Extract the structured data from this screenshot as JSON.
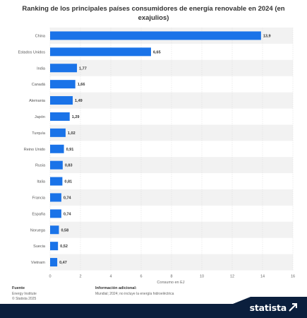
{
  "title": "Ranking de los principales países consumidores de energía renovable en 2024 (en exajulios)",
  "footer": {
    "source_heading": "Fuente",
    "source_line1": "Energy Institute",
    "source_line2": "© Statista 2025",
    "info_heading": "Información adicional:",
    "info_text": "Mundial; 2024; no incluye la energía hidroeléctrica",
    "brand": "statista"
  },
  "colors": {
    "bar": "#1a73e8",
    "band": "#f2f2f2",
    "brand_bg": "#0b1f3d",
    "grid": "#d9d9d9"
  },
  "icons": {
    "brand_logo": "statista-arrow-icon"
  },
  "chart_data": {
    "type": "bar",
    "orientation": "horizontal",
    "categories": [
      "China",
      "Estados Unidos",
      "India",
      "Canadá",
      "Alemania",
      "Japón",
      "Turquía",
      "Reino Unido",
      "Rusia",
      "Italia",
      "Francia",
      "España",
      "Noruega",
      "Suecia",
      "Vietnam"
    ],
    "values": [
      13.9,
      6.65,
      1.77,
      1.66,
      1.49,
      1.29,
      1.02,
      0.91,
      0.83,
      0.81,
      0.74,
      0.74,
      0.58,
      0.52,
      0.47
    ],
    "value_labels": [
      "13,9",
      "6,65",
      "1,77",
      "1,66",
      "1,49",
      "1,29",
      "1,02",
      "0,91",
      "0,83",
      "0,81",
      "0,74",
      "0,74",
      "0,58",
      "0,52",
      "0,47"
    ],
    "xticks": [
      0,
      2,
      4,
      6,
      8,
      10,
      12,
      14,
      16
    ],
    "xlim": [
      0,
      16
    ],
    "xlabel": "Consumo en EJ",
    "ylabel": "",
    "grid": true,
    "legend": "none"
  }
}
